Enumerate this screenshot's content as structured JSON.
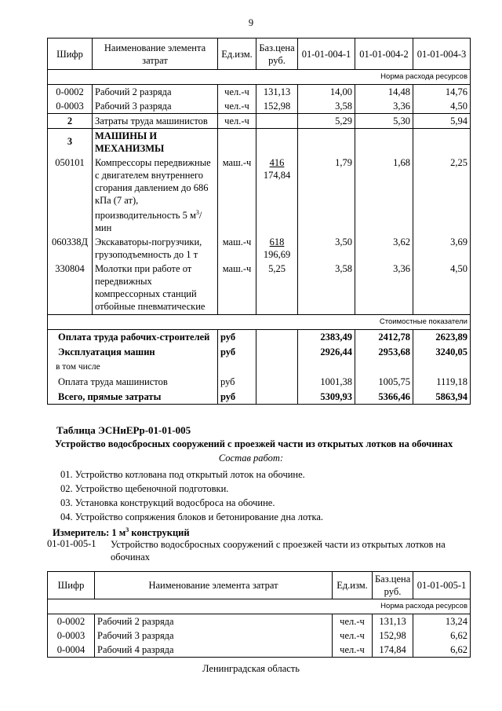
{
  "page_number": "9",
  "table1": {
    "headers": [
      "Шифр",
      "Наименование элемента затрат",
      "Ед.изм.",
      "Баз.цена руб.",
      "01-01-004-1",
      "01-01-004-2",
      "01-01-004-3"
    ],
    "norm_label": "Норма расхода ресурсов",
    "rows": [
      {
        "code": "0-0002",
        "name": "Рабочий 2 разряда",
        "unit": "чел.-ч",
        "price": "131,13",
        "v": [
          "14,00",
          "14,48",
          "14,76"
        ]
      },
      {
        "code": "0-0003",
        "name": "Рабочий 3 разряда",
        "unit": "чел.-ч",
        "price": "152,98",
        "v": [
          "3,58",
          "3,36",
          "4,50"
        ]
      },
      {
        "code": "2",
        "name": "Затраты труда машинистов",
        "unit": "чел.-ч",
        "price": "",
        "v": [
          "5,29",
          "5,30",
          "5,94"
        ]
      },
      {
        "code": "3",
        "name": "МАШИНЫ И МЕХАНИЗМЫ"
      },
      {
        "code": "050101",
        "name": "Компрессоры передвижные с двигателем внутреннего сгорания давлением до 686 кПа (7 ат), производительность 5 м",
        "name_sup": "3",
        "name_tail": "/мин",
        "unit": "маш.-ч",
        "price_top": "416",
        "price": "174,84",
        "v": [
          "1,79",
          "1,68",
          "2,25"
        ]
      },
      {
        "code": "060338Д",
        "name": "Экскаваторы-погрузчики, грузоподъемность до 1 т",
        "unit": "маш.-ч",
        "price_top": "618",
        "price": "196,69",
        "v": [
          "3,50",
          "3,62",
          "3,69"
        ]
      },
      {
        "code": "330804",
        "name": "Молотки при работе от передвижных компрессорных станций отбойные пневматические",
        "unit": "маш.-ч",
        "price": "5,25",
        "v": [
          "3,58",
          "3,36",
          "4,50"
        ]
      }
    ],
    "cost_label": "Стоимостные показатели",
    "cost_rows": [
      {
        "name": "Оплата труда рабочих-строителей",
        "unit": "руб",
        "v": [
          "2383,49",
          "2412,78",
          "2623,89"
        ],
        "bold": true
      },
      {
        "name": "Эксплуатация машин",
        "unit": "руб",
        "v": [
          "2926,44",
          "2953,68",
          "3240,05"
        ],
        "bold": true
      },
      {
        "name": "в том числе",
        "unit": "",
        "v": [
          "",
          "",
          ""
        ]
      },
      {
        "name": "Оплата труда машинистов",
        "unit": "руб",
        "v": [
          "1001,38",
          "1005,75",
          "1119,18"
        ]
      },
      {
        "name": "Всего, прямые затраты",
        "unit": "руб",
        "v": [
          "5309,93",
          "5366,46",
          "5863,94"
        ],
        "bold": true
      }
    ]
  },
  "section": {
    "title": "Таблица  ЭСНиЕРр-01-01-005",
    "subtitle": "Устройство водосбросных сооружений с проезжей части из открытых лотков на обочинах",
    "composition": "Состав работ:",
    "items": [
      "01. Устройство котлована под  открытый лоток на обочине.",
      "02. Устройство щебеночной подготовки.",
      "03. Установка конструкций водосброса на обочине.",
      "04. Устройство сопряжения блоков и бетонирование дна лотка."
    ],
    "meter_label": "Измеритель: 1 м",
    "meter_sup": "3",
    "meter_tail": " конструкций",
    "code": "01-01-005-1",
    "code_desc": "Устройство водосбросных сооружений с проезжей части из открытых лотков на обочинах"
  },
  "table2": {
    "headers": [
      "Шифр",
      "Наименование элемента затрат",
      "Ед.изм.",
      "Баз.цена руб.",
      "01-01-005-1"
    ],
    "norm_label": "Норма расхода ресурсов",
    "rows": [
      {
        "code": "0-0002",
        "name": "Рабочий 2 разряда",
        "unit": "чел.-ч",
        "price": "131,13",
        "v": "13,24"
      },
      {
        "code": "0-0003",
        "name": "Рабочий 3 разряда",
        "unit": "чел.-ч",
        "price": "152,98",
        "v": "6,62"
      },
      {
        "code": "0-0004",
        "name": "Рабочий 4 разряда",
        "unit": "чел.-ч",
        "price": "174,84",
        "v": "6,62"
      }
    ]
  },
  "footer": "Ленинградская область"
}
